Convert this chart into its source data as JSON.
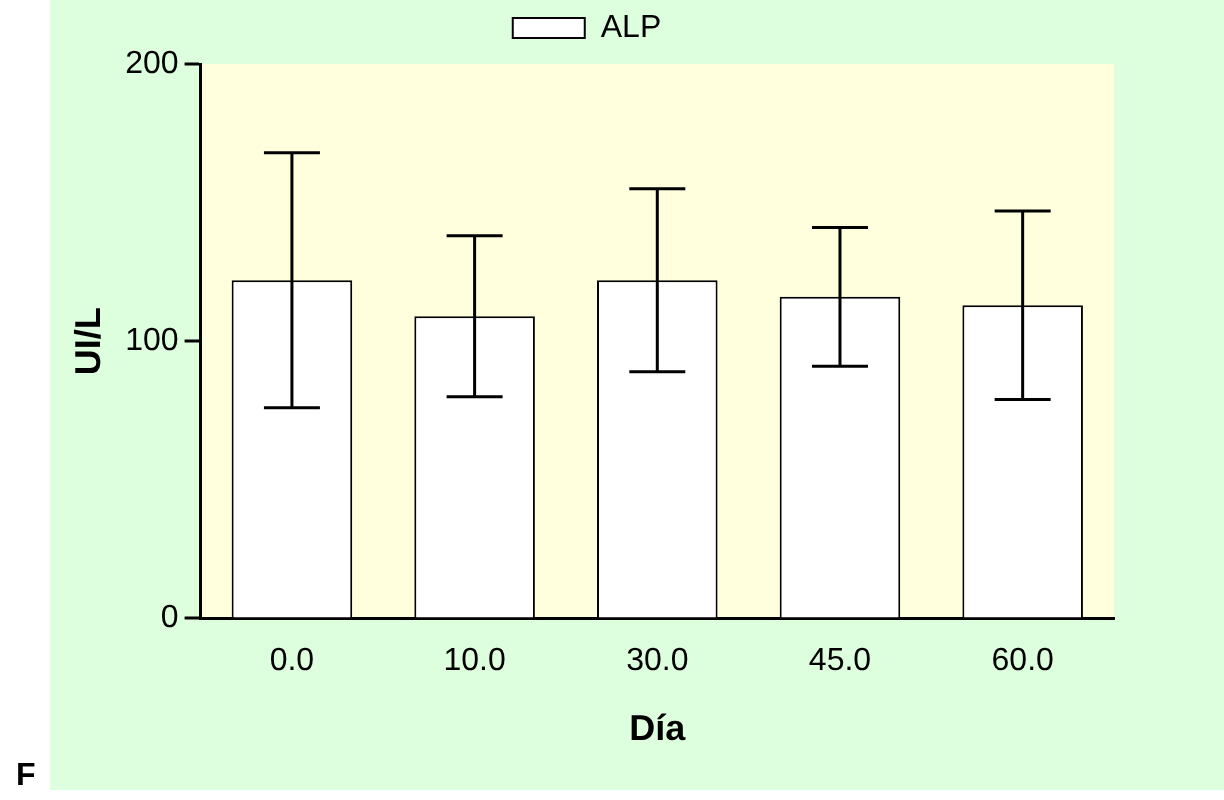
{
  "chart_data": {
    "type": "bar",
    "categories": [
      "0.0",
      "10.0",
      "30.0",
      "45.0",
      "60.0"
    ],
    "series": [
      {
        "name": "ALP",
        "color": "#ffffff",
        "values": [
          122,
          109,
          122,
          116,
          113
        ],
        "errors": [
          46,
          29,
          33,
          25,
          34
        ]
      }
    ],
    "xlabel": "Día",
    "ylabel": "UI/L",
    "ylim": [
      0,
      200
    ],
    "yticks": [
      0,
      100,
      200
    ],
    "grid": false,
    "legend": "top",
    "annotations": [
      "F"
    ]
  }
}
